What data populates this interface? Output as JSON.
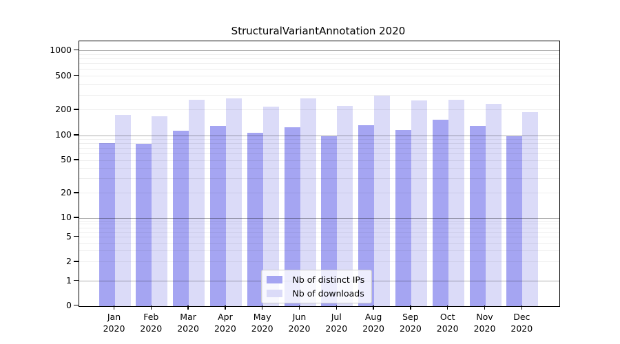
{
  "title": "StructuralVariantAnnotation 2020",
  "chart_data": {
    "type": "bar",
    "title": "StructuralVariantAnnotation 2020",
    "categories": [
      "Jan",
      "Feb",
      "Mar",
      "Apr",
      "May",
      "Jun",
      "Jul",
      "Aug",
      "Sep",
      "Oct",
      "Nov",
      "Dec"
    ],
    "x_year_label": "2020",
    "series": [
      {
        "name": "Nb of distinct IPs",
        "color": "#a5a5f2",
        "values": [
          81,
          79,
          114,
          130,
          107,
          126,
          98,
          132,
          117,
          153,
          131,
          99
        ]
      },
      {
        "name": "Nb of downloads",
        "color": "#dbdbf8",
        "values": [
          176,
          169,
          262,
          272,
          219,
          275,
          221,
          293,
          260,
          265,
          236,
          190
        ]
      }
    ],
    "xlabel": "",
    "ylabel": "",
    "y_scale": "log-like (0, 1, 2, 5, 10, 20, 50, 100, 200, 500, 1000)",
    "y_ticks": [
      1000,
      500,
      200,
      100,
      50,
      20,
      10,
      5,
      2,
      1,
      0
    ],
    "ylim": [
      0,
      1400
    ],
    "grid": true,
    "legend_position": "bottom-center"
  },
  "colors": {
    "background": "#ffffff",
    "spine": "#000000",
    "major_grid": "#aeaeae",
    "minor_grid": "#ededed",
    "bar_distinct_ips": "#a5a5f2",
    "bar_downloads": "#dbdbf8"
  }
}
